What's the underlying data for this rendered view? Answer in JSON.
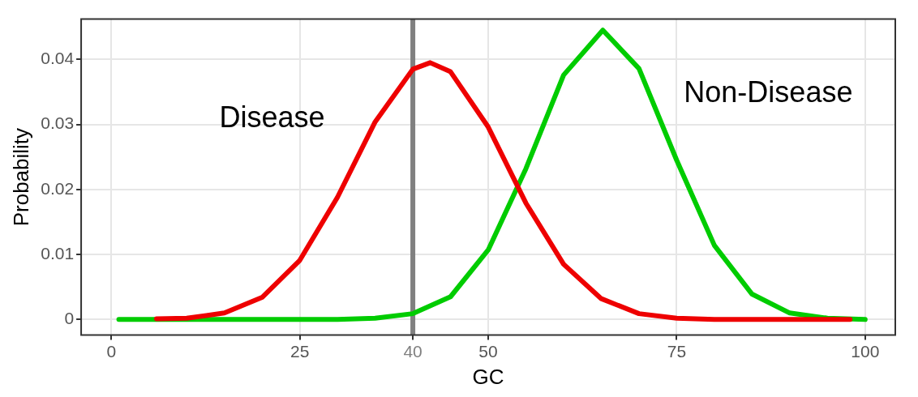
{
  "chart_data": {
    "type": "line",
    "xlabel": "GC",
    "ylabel": "Probability",
    "series": [
      {
        "name": "Disease",
        "color": "#ee0000",
        "x": [
          6,
          10,
          15,
          20,
          25,
          30,
          35,
          40,
          42.3,
          45,
          50,
          55,
          60,
          65,
          70,
          75,
          80,
          85,
          90,
          95,
          98
        ],
        "values": [
          0.0001,
          0.0002,
          0.001,
          0.0034,
          0.0091,
          0.0188,
          0.0304,
          0.0385,
          0.0395,
          0.0381,
          0.0296,
          0.0179,
          0.0085,
          0.0032,
          0.0009,
          0.0002,
          0,
          0,
          0,
          0,
          0
        ]
      },
      {
        "name": "Non-Disease",
        "color": "#00cc00",
        "x": [
          1,
          10,
          20,
          30,
          35,
          40,
          45,
          50,
          55,
          60,
          65.2,
          70,
          75,
          80,
          85,
          90,
          95,
          100
        ],
        "values": [
          0,
          0,
          0,
          0,
          0.0002,
          0.0009,
          0.0035,
          0.0107,
          0.0232,
          0.0376,
          0.0445,
          0.0386,
          0.0245,
          0.0114,
          0.0039,
          0.001,
          0.0002,
          0
        ]
      }
    ],
    "xlim": [
      -4,
      104
    ],
    "xticks": [
      0,
      25,
      40,
      50,
      75,
      100
    ],
    "ylim": [
      -0.0024,
      0.0462
    ],
    "yticks": [
      0,
      0.01,
      0.02,
      0.03,
      0.04
    ],
    "ref_lines": [
      {
        "axis": "x",
        "value": 40,
        "color": "#808080"
      }
    ],
    "grid": true,
    "legend": false,
    "marker": "none",
    "line_style": "solid"
  }
}
